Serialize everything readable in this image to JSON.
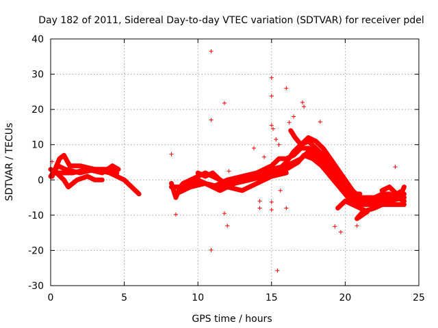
{
  "chart_data": {
    "type": "scatter",
    "title": "Day 182 of 2011, Sidereal Day-to-day VTEC variation (SDTVAR) for receiver pdel",
    "xlabel": "GPS time / hours",
    "ylabel": "SDTVAR / TECUs",
    "xlim": [
      0,
      25
    ],
    "ylim": [
      -30,
      40
    ],
    "xticks": [
      0,
      5,
      10,
      15,
      20,
      25
    ],
    "yticks": [
      -30,
      -20,
      -10,
      0,
      10,
      20,
      30,
      40
    ],
    "grid": true,
    "legend": "none",
    "marker": "+",
    "color": "#ff0000",
    "traces": [
      [
        [
          0,
          1
        ],
        [
          0.5,
          4
        ],
        [
          1,
          3
        ],
        [
          2,
          2
        ],
        [
          3,
          3
        ],
        [
          3.5,
          2.5
        ],
        [
          4,
          2
        ],
        [
          4.5,
          1
        ],
        [
          5,
          0
        ],
        [
          5.5,
          -2
        ],
        [
          6,
          -4
        ]
      ],
      [
        [
          0.1,
          1
        ],
        [
          0.6,
          6
        ],
        [
          0.9,
          7
        ],
        [
          1.3,
          4
        ],
        [
          2,
          4
        ],
        [
          3,
          3
        ],
        [
          3.5,
          3
        ],
        [
          4,
          3
        ],
        [
          4.5,
          2
        ]
      ],
      [
        [
          0,
          3
        ],
        [
          0.4,
          2
        ],
        [
          0.9,
          0
        ],
        [
          1.2,
          -2
        ],
        [
          1.8,
          0
        ],
        [
          2.5,
          1
        ],
        [
          3,
          0
        ],
        [
          3.5,
          0
        ]
      ],
      [
        [
          0.2,
          2
        ],
        [
          0.7,
          2
        ],
        [
          1.5,
          2
        ],
        [
          2.5,
          3
        ],
        [
          3.5,
          2
        ],
        [
          4.2,
          4
        ],
        [
          4.6,
          3
        ]
      ],
      [
        [
          8.2,
          -1
        ],
        [
          8.5,
          -5
        ],
        [
          8.8,
          -2
        ],
        [
          9,
          -1
        ],
        [
          9.5,
          -1
        ],
        [
          10,
          0
        ],
        [
          10.5,
          -1
        ],
        [
          11,
          -1.5
        ],
        [
          11.5,
          -2
        ],
        [
          12,
          -1
        ],
        [
          12.5,
          0
        ],
        [
          13,
          0.5
        ],
        [
          13.5,
          1
        ],
        [
          14,
          2
        ],
        [
          14.5,
          3
        ],
        [
          15,
          4
        ],
        [
          15.5,
          6
        ],
        [
          16,
          6
        ],
        [
          16.5,
          7
        ],
        [
          17,
          9
        ],
        [
          17.5,
          9
        ],
        [
          18,
          8
        ],
        [
          18.5,
          6
        ],
        [
          19,
          3
        ],
        [
          19.5,
          0
        ],
        [
          20,
          -3
        ],
        [
          20.5,
          -5
        ],
        [
          21,
          -6
        ],
        [
          21.5,
          -6
        ],
        [
          22,
          -5
        ],
        [
          22.5,
          -4
        ],
        [
          23,
          -4
        ],
        [
          23.5,
          -5
        ],
        [
          24,
          -6
        ]
      ],
      [
        [
          8.2,
          -2
        ],
        [
          9,
          -2
        ],
        [
          10,
          0
        ],
        [
          11,
          -2
        ],
        [
          12,
          0
        ],
        [
          13,
          1
        ],
        [
          14,
          2
        ],
        [
          15,
          3
        ],
        [
          16,
          4
        ],
        [
          16.5,
          5
        ],
        [
          17,
          6
        ],
        [
          17.5,
          8
        ],
        [
          18,
          7
        ],
        [
          18.6,
          5
        ],
        [
          19.2,
          2
        ],
        [
          19.8,
          -1
        ],
        [
          20.4,
          -4
        ],
        [
          21,
          -5
        ],
        [
          22,
          -5
        ],
        [
          23,
          -5
        ],
        [
          24,
          -4
        ]
      ],
      [
        [
          8.5,
          -4
        ],
        [
          9.5,
          -2
        ],
        [
          10.5,
          -1
        ],
        [
          11.5,
          -3
        ],
        [
          12.5,
          -1
        ],
        [
          13.5,
          0
        ],
        [
          14.5,
          1
        ],
        [
          15.5,
          3
        ],
        [
          16,
          5
        ],
        [
          16.5,
          8
        ],
        [
          17,
          10
        ],
        [
          17.5,
          12
        ],
        [
          18,
          11
        ],
        [
          18.5,
          9
        ],
        [
          19,
          6
        ],
        [
          19.5,
          3
        ],
        [
          20,
          0
        ],
        [
          20.5,
          -3
        ],
        [
          21,
          -5
        ],
        [
          22,
          -6
        ],
        [
          23,
          -6
        ],
        [
          24,
          -5
        ]
      ],
      [
        [
          9,
          -1
        ],
        [
          10,
          1
        ],
        [
          10.5,
          2
        ],
        [
          11,
          1
        ],
        [
          12,
          -1
        ],
        [
          13,
          0
        ],
        [
          14,
          1
        ],
        [
          15,
          2
        ],
        [
          16,
          3
        ],
        [
          16.8,
          5
        ],
        [
          17.2,
          7
        ],
        [
          17.8,
          6
        ],
        [
          18.4,
          4
        ],
        [
          19,
          1
        ],
        [
          19.6,
          -2
        ],
        [
          20.2,
          -5
        ],
        [
          21,
          -7
        ],
        [
          22,
          -7
        ],
        [
          23,
          -7
        ],
        [
          24,
          -7
        ]
      ],
      [
        [
          10,
          2
        ],
        [
          10.5,
          1
        ],
        [
          11,
          2
        ],
        [
          11.5,
          0
        ],
        [
          12,
          -2
        ],
        [
          13,
          -3
        ],
        [
          14,
          -1
        ],
        [
          15,
          1
        ],
        [
          16,
          2
        ]
      ],
      [
        [
          16.3,
          14
        ],
        [
          16.6,
          12
        ],
        [
          17,
          10
        ],
        [
          17.5,
          11
        ],
        [
          18,
          9
        ],
        [
          18.5,
          7
        ],
        [
          19,
          4
        ],
        [
          19.5,
          1
        ],
        [
          20,
          -2
        ],
        [
          20.5,
          -4
        ],
        [
          21,
          -4
        ]
      ],
      [
        [
          19.5,
          -8
        ],
        [
          20,
          -6
        ],
        [
          20.5,
          -7
        ],
        [
          21,
          -8
        ],
        [
          21.5,
          -9
        ],
        [
          20.8,
          -11
        ],
        [
          21.2,
          -9
        ],
        [
          22,
          -8
        ],
        [
          22.5,
          -7
        ]
      ],
      [
        [
          22.5,
          -3
        ],
        [
          23,
          -2
        ],
        [
          23.5,
          -4
        ],
        [
          23.9,
          -3
        ],
        [
          24,
          -2
        ]
      ]
    ],
    "outliers": [
      [
        0.1,
        5.2
      ],
      [
        8.2,
        7.3
      ],
      [
        8.5,
        -9.8
      ],
      [
        10.9,
        36.5
      ],
      [
        10.9,
        17
      ],
      [
        10.9,
        -19.9
      ],
      [
        11.8,
        21.8
      ],
      [
        11.8,
        -9.5
      ],
      [
        12.0,
        -13.0
      ],
      [
        12.1,
        2.5
      ],
      [
        13.8,
        9
      ],
      [
        14.2,
        -6
      ],
      [
        14.2,
        -8
      ],
      [
        14.5,
        6.5
      ],
      [
        15.0,
        29
      ],
      [
        15.0,
        23.8
      ],
      [
        15.0,
        15.5
      ],
      [
        15.1,
        14.5
      ],
      [
        15.0,
        -6.3
      ],
      [
        15.0,
        -8.5
      ],
      [
        15.3,
        11.5
      ],
      [
        15.4,
        -25.7
      ],
      [
        15.5,
        10
      ],
      [
        15.6,
        -3
      ],
      [
        16.0,
        26
      ],
      [
        16.0,
        3
      ],
      [
        16.0,
        -8
      ],
      [
        16.2,
        16.3
      ],
      [
        16.5,
        18
      ],
      [
        17.1,
        22
      ],
      [
        17.2,
        20.8
      ],
      [
        18.3,
        16.5
      ],
      [
        19.3,
        -13.2
      ],
      [
        19.7,
        -14.8
      ],
      [
        20.8,
        -13
      ],
      [
        22.6,
        -3
      ],
      [
        23.4,
        3.7
      ]
    ]
  }
}
